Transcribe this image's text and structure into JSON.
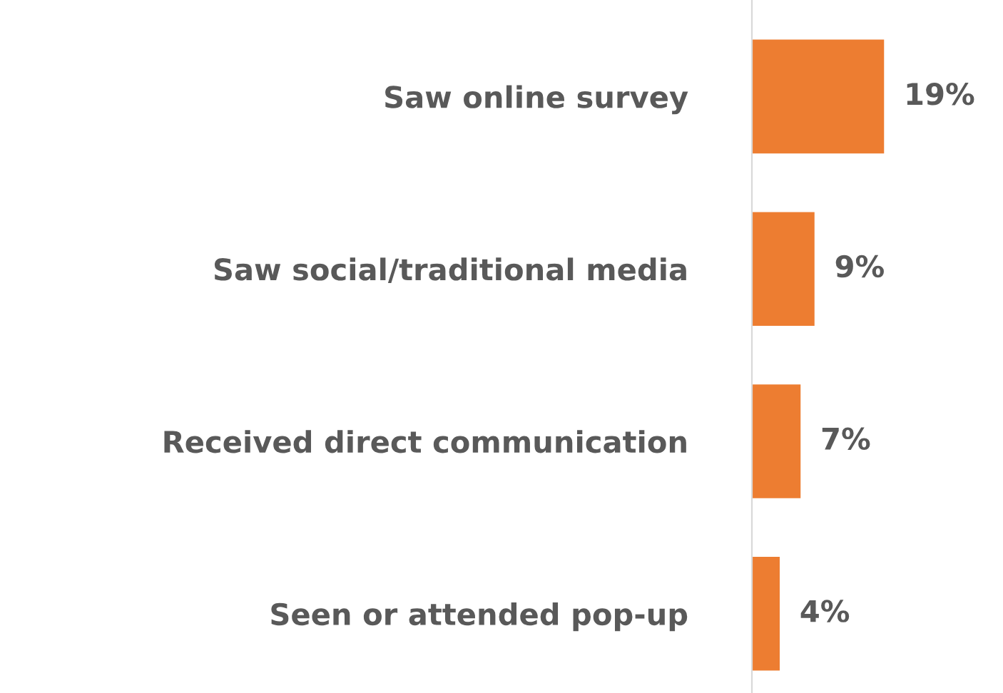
{
  "chart_data": {
    "type": "bar",
    "orientation": "horizontal",
    "categories": [
      "Saw online survey",
      "Saw social/traditional media",
      "Received direct communication",
      "Seen or attended pop-up"
    ],
    "values": [
      19,
      9,
      7,
      4
    ],
    "value_labels": [
      "19%",
      "9%",
      "7%",
      "4%"
    ],
    "color": "#ed7d31",
    "grid": false,
    "legend": false
  }
}
